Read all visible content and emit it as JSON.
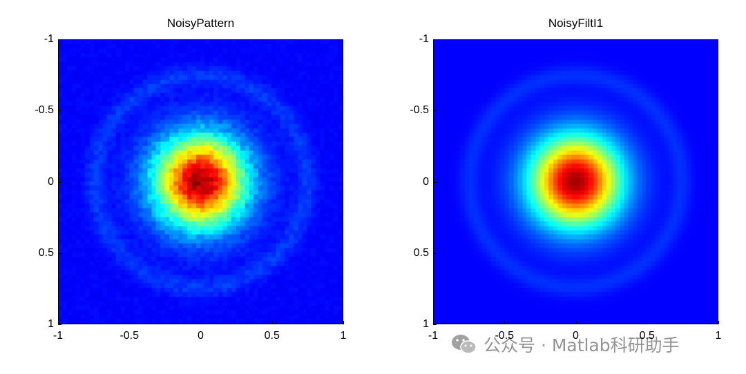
{
  "chart_data": [
    {
      "type": "heatmap",
      "title": "NoisyPattern",
      "xlabel": "",
      "ylabel": "",
      "xlim": [
        -1,
        1
      ],
      "ylim": [
        -1,
        1
      ],
      "y_axis_direction": "reversed",
      "x_ticks": [
        "-1",
        "-0.5",
        "0",
        "0.5",
        "1"
      ],
      "y_ticks": [
        "-1",
        "-0.5",
        "0",
        "0.5",
        "1"
      ],
      "x_tick_values": [
        -1,
        -0.5,
        0,
        0.5,
        1
      ],
      "y_tick_values": [
        -1,
        -0.5,
        0,
        0.5,
        1
      ],
      "colormap": "jet",
      "pattern": {
        "center": [
          0,
          0
        ],
        "peak_radius_sigma": 0.22,
        "ring_radius": 0.75,
        "ring_intensity": 0.06,
        "noise": 0.05
      },
      "grid": false
    },
    {
      "type": "heatmap",
      "title": "NoisyFiltI1",
      "xlabel": "",
      "ylabel": "",
      "xlim": [
        -1,
        1
      ],
      "ylim": [
        -1,
        1
      ],
      "y_axis_direction": "reversed",
      "x_ticks": [
        "-1",
        "-0.5",
        "0",
        "0.5",
        "1"
      ],
      "y_ticks": [
        "-1",
        "-0.5",
        "0",
        "0.5",
        "1"
      ],
      "x_tick_values": [
        -1,
        -0.5,
        0,
        0.5,
        1
      ],
      "y_tick_values": [
        -1,
        -0.5,
        0,
        0.5,
        1
      ],
      "colormap": "jet",
      "pattern": {
        "center": [
          0,
          0
        ],
        "peak_radius_sigma": 0.22,
        "ring_radius": 0.75,
        "ring_intensity": 0.05,
        "noise": 0.0
      },
      "grid": false
    }
  ],
  "watermark": {
    "text": "公众号 · Matlab科研助手",
    "icon": "wechat-icon",
    "color": "#8b8b8b"
  }
}
